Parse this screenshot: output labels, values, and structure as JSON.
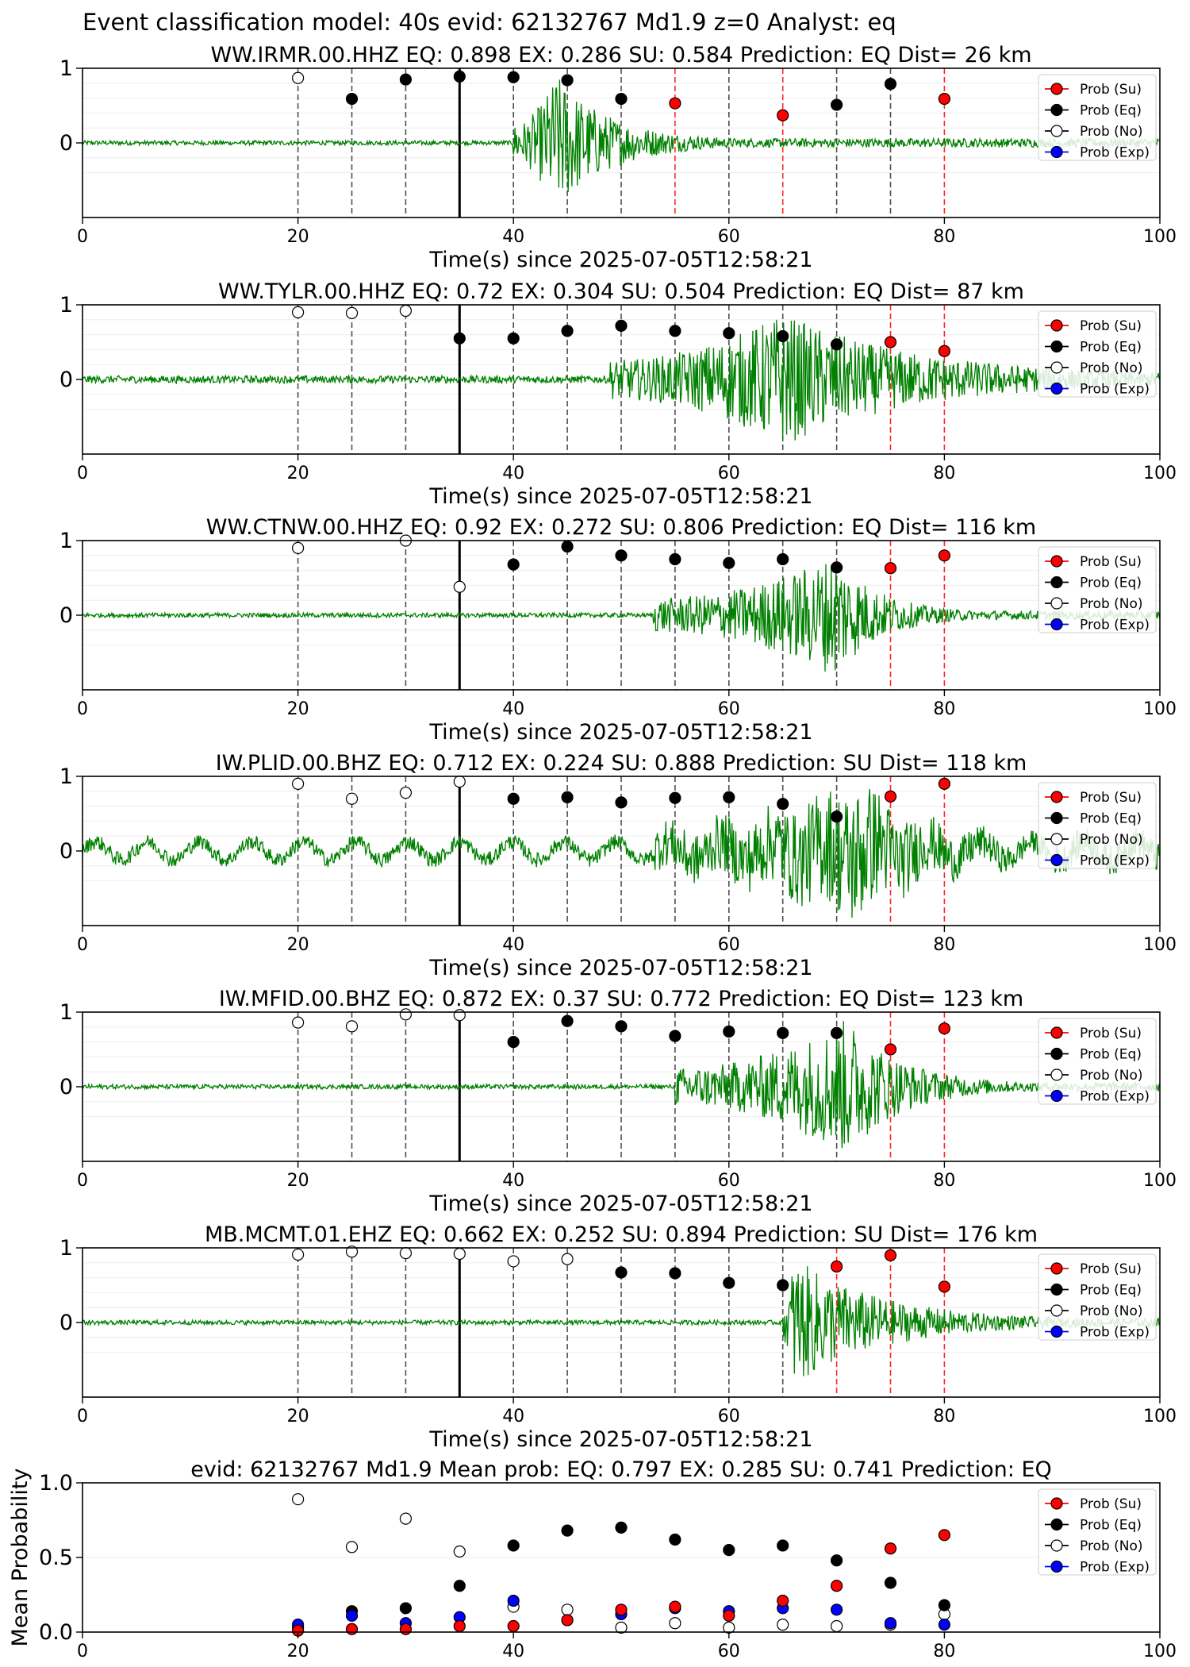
{
  "figure_title": "Event classification model: 40s evid: 62132767 Md1.9 z=0 Analyst: eq",
  "legend": [
    "Prob (Su)",
    "Prob (Eq)",
    "Prob (No)",
    "Prob (Exp)"
  ],
  "xlabel": "Time(s) since 2025-07-05T12:58:21",
  "colors": {
    "su": "#ff0000",
    "eq": "#000000",
    "no": "#ffffff",
    "exp": "#0000ff",
    "waveform": "#008000",
    "grid": "#cccccc"
  },
  "chart_data": [
    {
      "type": "scatter",
      "title": "WW.IRMR.00.HHZ   EQ: 0.898  EX: 0.286  SU: 0.584   Prediction: EQ    Dist= 26 km",
      "xlim": [
        0,
        100
      ],
      "ylim": [
        -1,
        1
      ],
      "xticks": [
        0,
        20,
        40,
        60,
        80,
        100
      ],
      "yticks": [
        0,
        1
      ],
      "onset": 35,
      "signal_start": 40,
      "signal_peak": 44,
      "noise": 0.03,
      "env": 0.9,
      "decay": 5,
      "points": [
        {
          "x": 20,
          "y": 0.87,
          "c": "no"
        },
        {
          "x": 25,
          "y": 0.59,
          "c": "eq"
        },
        {
          "x": 30,
          "y": 0.85,
          "c": "eq"
        },
        {
          "x": 35,
          "y": 0.89,
          "c": "eq"
        },
        {
          "x": 40,
          "y": 0.88,
          "c": "eq"
        },
        {
          "x": 45,
          "y": 0.84,
          "c": "eq"
        },
        {
          "x": 50,
          "y": 0.59,
          "c": "eq"
        },
        {
          "x": 55,
          "y": 0.53,
          "c": "su"
        },
        {
          "x": 60,
          "y": null,
          "c": "eq"
        },
        {
          "x": 65,
          "y": 0.37,
          "c": "su"
        },
        {
          "x": 70,
          "y": 0.51,
          "c": "eq"
        },
        {
          "x": 75,
          "y": 0.79,
          "c": "eq"
        },
        {
          "x": 80,
          "y": 0.59,
          "c": "su"
        }
      ]
    },
    {
      "type": "scatter",
      "title": "WW.TYLR.00.HHZ   EQ: 0.72  EX: 0.304  SU: 0.504   Prediction: EQ    Dist= 87 km",
      "xlim": [
        0,
        100
      ],
      "ylim": [
        -1,
        1
      ],
      "xticks": [
        0,
        20,
        40,
        60,
        80,
        100
      ],
      "yticks": [
        0,
        1
      ],
      "onset": 35,
      "signal_start": 49,
      "signal_peak": 65,
      "noise": 0.05,
      "env": 0.85,
      "decay": 12,
      "points": [
        {
          "x": 20,
          "y": 0.9,
          "c": "no"
        },
        {
          "x": 25,
          "y": 0.89,
          "c": "no"
        },
        {
          "x": 30,
          "y": 0.92,
          "c": "no"
        },
        {
          "x": 35,
          "y": 0.55,
          "c": "eq"
        },
        {
          "x": 40,
          "y": 0.55,
          "c": "eq"
        },
        {
          "x": 45,
          "y": 0.65,
          "c": "eq"
        },
        {
          "x": 50,
          "y": 0.72,
          "c": "eq"
        },
        {
          "x": 55,
          "y": 0.65,
          "c": "eq"
        },
        {
          "x": 60,
          "y": 0.62,
          "c": "eq"
        },
        {
          "x": 65,
          "y": 0.58,
          "c": "eq"
        },
        {
          "x": 70,
          "y": 0.47,
          "c": "eq"
        },
        {
          "x": 75,
          "y": 0.5,
          "c": "su"
        },
        {
          "x": 80,
          "y": 0.38,
          "c": "su"
        }
      ]
    },
    {
      "type": "scatter",
      "title": "WW.CTNW.00.HHZ   EQ: 0.92  EX: 0.272  SU: 0.806   Prediction: EQ    Dist= 116 km",
      "xlim": [
        0,
        100
      ],
      "ylim": [
        -1,
        1
      ],
      "xticks": [
        0,
        20,
        40,
        60,
        80,
        100
      ],
      "yticks": [
        0,
        1
      ],
      "onset": 35,
      "signal_start": 53,
      "signal_peak": 70,
      "noise": 0.03,
      "env": 0.8,
      "decay": 4,
      "points": [
        {
          "x": 20,
          "y": 0.9,
          "c": "no"
        },
        {
          "x": 30,
          "y": 1.0,
          "c": "no"
        },
        {
          "x": 35,
          "y": 0.38,
          "c": "no"
        },
        {
          "x": 40,
          "y": 0.68,
          "c": "eq"
        },
        {
          "x": 45,
          "y": 0.92,
          "c": "eq"
        },
        {
          "x": 50,
          "y": 0.8,
          "c": "eq"
        },
        {
          "x": 55,
          "y": 0.75,
          "c": "eq"
        },
        {
          "x": 60,
          "y": 0.7,
          "c": "eq"
        },
        {
          "x": 65,
          "y": 0.75,
          "c": "eq"
        },
        {
          "x": 70,
          "y": 0.64,
          "c": "eq"
        },
        {
          "x": 75,
          "y": 0.63,
          "c": "su"
        },
        {
          "x": 80,
          "y": 0.8,
          "c": "su"
        }
      ]
    },
    {
      "type": "scatter",
      "title": "IW.PLID.00.BHZ   EQ: 0.712  EX: 0.224  SU: 0.888   Prediction: SU    Dist= 118 km",
      "xlim": [
        0,
        100
      ],
      "ylim": [
        -1,
        1
      ],
      "xticks": [
        0,
        20,
        40,
        60,
        80,
        100
      ],
      "yticks": [
        0,
        1
      ],
      "onset": 35,
      "signal_start": 53,
      "signal_peak": 72,
      "noise": 0.1,
      "env": 0.85,
      "decay": 6,
      "points": [
        {
          "x": 20,
          "y": 0.9,
          "c": "no"
        },
        {
          "x": 25,
          "y": 0.7,
          "c": "no"
        },
        {
          "x": 30,
          "y": 0.78,
          "c": "no"
        },
        {
          "x": 35,
          "y": 0.93,
          "c": "no"
        },
        {
          "x": 40,
          "y": 0.7,
          "c": "eq"
        },
        {
          "x": 45,
          "y": 0.72,
          "c": "eq"
        },
        {
          "x": 50,
          "y": 0.65,
          "c": "eq"
        },
        {
          "x": 55,
          "y": 0.71,
          "c": "eq"
        },
        {
          "x": 60,
          "y": 0.72,
          "c": "eq"
        },
        {
          "x": 65,
          "y": 0.63,
          "c": "eq"
        },
        {
          "x": 70,
          "y": 0.46,
          "c": "eq"
        },
        {
          "x": 75,
          "y": 0.73,
          "c": "su"
        },
        {
          "x": 80,
          "y": 0.9,
          "c": "su"
        }
      ]
    },
    {
      "type": "scatter",
      "title": "IW.MFID.00.BHZ   EQ: 0.872  EX: 0.37  SU: 0.772   Prediction: EQ    Dist= 123 km",
      "xlim": [
        0,
        100
      ],
      "ylim": [
        -1,
        1
      ],
      "xticks": [
        0,
        20,
        40,
        60,
        80,
        100
      ],
      "yticks": [
        0,
        1
      ],
      "onset": 35,
      "signal_start": 55,
      "signal_peak": 71,
      "noise": 0.03,
      "env": 0.9,
      "decay": 5,
      "points": [
        {
          "x": 20,
          "y": 0.86,
          "c": "no"
        },
        {
          "x": 25,
          "y": 0.81,
          "c": "no"
        },
        {
          "x": 30,
          "y": 0.97,
          "c": "no"
        },
        {
          "x": 35,
          "y": 0.96,
          "c": "no"
        },
        {
          "x": 40,
          "y": 0.6,
          "c": "eq"
        },
        {
          "x": 45,
          "y": 0.88,
          "c": "eq"
        },
        {
          "x": 50,
          "y": 0.81,
          "c": "eq"
        },
        {
          "x": 55,
          "y": 0.68,
          "c": "eq"
        },
        {
          "x": 60,
          "y": 0.74,
          "c": "eq"
        },
        {
          "x": 65,
          "y": 0.72,
          "c": "eq"
        },
        {
          "x": 70,
          "y": 0.72,
          "c": "eq"
        },
        {
          "x": 75,
          "y": 0.5,
          "c": "su"
        },
        {
          "x": 80,
          "y": 0.78,
          "c": "su"
        }
      ]
    },
    {
      "type": "scatter",
      "title": "MB.MCMT.01.EHZ   EQ: 0.662  EX: 0.252  SU: 0.894   Prediction: SU    Dist= 176 km",
      "xlim": [
        0,
        100
      ],
      "ylim": [
        -1,
        1
      ],
      "xticks": [
        0,
        20,
        40,
        60,
        80,
        100
      ],
      "yticks": [
        0,
        1
      ],
      "onset": 35,
      "signal_start": 65,
      "signal_peak": 66,
      "noise": 0.03,
      "env": 0.85,
      "decay": 8,
      "points": [
        {
          "x": 20,
          "y": 0.91,
          "c": "no"
        },
        {
          "x": 25,
          "y": 0.95,
          "c": "no"
        },
        {
          "x": 30,
          "y": 0.93,
          "c": "no"
        },
        {
          "x": 35,
          "y": 0.92,
          "c": "no"
        },
        {
          "x": 40,
          "y": 0.82,
          "c": "no"
        },
        {
          "x": 45,
          "y": 0.85,
          "c": "no"
        },
        {
          "x": 50,
          "y": 0.67,
          "c": "eq"
        },
        {
          "x": 55,
          "y": 0.66,
          "c": "eq"
        },
        {
          "x": 60,
          "y": 0.53,
          "c": "eq"
        },
        {
          "x": 65,
          "y": 0.5,
          "c": "eq"
        },
        {
          "x": 70,
          "y": 0.75,
          "c": "su"
        },
        {
          "x": 75,
          "y": 0.9,
          "c": "su"
        },
        {
          "x": 80,
          "y": 0.48,
          "c": "su"
        }
      ]
    },
    {
      "type": "scatter",
      "title": "evid: 62132767  Md1.9   Mean prob:   EQ: 0.797  EX: 0.285  SU: 0.741   Prediction: EQ",
      "ylabel": "Mean Probability",
      "xlim": [
        0,
        100
      ],
      "ylim": [
        0,
        1.0
      ],
      "xticks": [
        0,
        20,
        40,
        60,
        80,
        100
      ],
      "yticks": [
        "0.0",
        "0.5",
        "1.0"
      ],
      "x": [
        20,
        25,
        30,
        35,
        40,
        45,
        50,
        55,
        60,
        65,
        70,
        75,
        80
      ],
      "series": [
        {
          "name": "Prob (No)",
          "c": "no",
          "values": [
            0.89,
            0.57,
            0.76,
            0.54,
            0.17,
            0.15,
            0.03,
            0.06,
            0.03,
            0.05,
            0.04,
            0.05,
            0.12
          ]
        },
        {
          "name": "Prob (Eq)",
          "c": "eq",
          "values": [
            0.03,
            0.14,
            0.16,
            0.31,
            0.58,
            0.68,
            0.7,
            0.62,
            0.55,
            0.58,
            0.48,
            0.33,
            0.18
          ]
        },
        {
          "name": "Prob (Exp)",
          "c": "exp",
          "values": [
            0.05,
            0.11,
            0.06,
            0.1,
            0.21,
            0.08,
            0.12,
            0.16,
            0.14,
            0.16,
            0.15,
            0.06,
            0.05
          ]
        },
        {
          "name": "Prob (Su)",
          "c": "su",
          "values": [
            0.01,
            0.02,
            0.02,
            0.04,
            0.04,
            0.08,
            0.15,
            0.17,
            0.11,
            0.21,
            0.31,
            0.56,
            0.65
          ]
        }
      ]
    }
  ]
}
